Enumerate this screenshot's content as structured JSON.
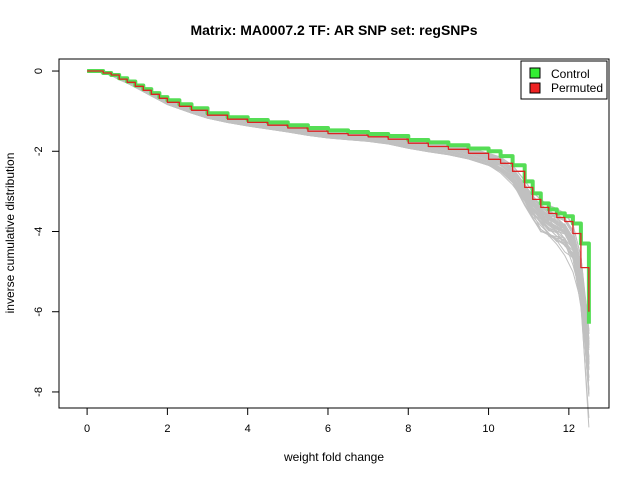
{
  "chart_data": {
    "type": "line",
    "title": "Matrix: MA0007.2 TF: AR SNP set: regSNPs",
    "xlabel": "weight fold change",
    "ylabel": "inverse cumulative distribution",
    "xlim": [
      -0.7,
      13.0
    ],
    "ylim": [
      -8.4,
      0.3
    ],
    "xticks": [
      0,
      2,
      4,
      6,
      8,
      10,
      12
    ],
    "yticks": [
      0,
      -2,
      -4,
      -6,
      -8
    ],
    "grid": false,
    "legend": {
      "position": "top-right",
      "entries": [
        {
          "label": "Control",
          "color": "#33ee33"
        },
        {
          "label": "Permuted",
          "color": "#ee2222"
        }
      ]
    },
    "colors": {
      "background_lines": "#c0c0c0",
      "control": "#55dd55",
      "permuted": "#dd2222",
      "axis": "#000000"
    },
    "background_line_count": 50,
    "series": [
      {
        "name": "Control",
        "x": [
          0,
          0.2,
          0.4,
          0.6,
          0.8,
          1.0,
          1.2,
          1.4,
          1.6,
          1.8,
          2.0,
          2.3,
          2.6,
          3.0,
          3.5,
          4.0,
          4.5,
          5.0,
          5.5,
          6.0,
          6.5,
          7.0,
          7.5,
          8.0,
          8.5,
          9.0,
          9.5,
          10.0,
          10.3,
          10.6,
          10.9,
          11.1,
          11.3,
          11.5,
          11.7,
          11.9,
          12.1,
          12.3,
          12.5
        ],
        "values": [
          0,
          0,
          -0.05,
          -0.1,
          -0.18,
          -0.26,
          -0.36,
          -0.45,
          -0.55,
          -0.65,
          -0.73,
          -0.83,
          -0.93,
          -1.05,
          -1.15,
          -1.22,
          -1.28,
          -1.35,
          -1.42,
          -1.48,
          -1.52,
          -1.57,
          -1.62,
          -1.72,
          -1.78,
          -1.85,
          -1.93,
          -2.0,
          -2.12,
          -2.35,
          -2.75,
          -3.05,
          -3.3,
          -3.45,
          -3.55,
          -3.62,
          -3.8,
          -4.3,
          -6.3
        ]
      },
      {
        "name": "Permuted",
        "x": [
          0,
          0.2,
          0.4,
          0.6,
          0.8,
          1.0,
          1.2,
          1.4,
          1.6,
          1.8,
          2.0,
          2.3,
          2.6,
          3.0,
          3.5,
          4.0,
          4.5,
          5.0,
          5.5,
          6.0,
          6.5,
          7.0,
          7.5,
          8.0,
          8.5,
          9.0,
          9.5,
          10.0,
          10.3,
          10.6,
          10.9,
          11.1,
          11.3,
          11.5,
          11.7,
          11.9,
          12.1,
          12.3,
          12.5
        ],
        "values": [
          0,
          0,
          -0.05,
          -0.1,
          -0.2,
          -0.28,
          -0.38,
          -0.48,
          -0.58,
          -0.68,
          -0.78,
          -0.88,
          -0.98,
          -1.1,
          -1.2,
          -1.28,
          -1.35,
          -1.42,
          -1.5,
          -1.56,
          -1.6,
          -1.64,
          -1.7,
          -1.8,
          -1.88,
          -1.95,
          -2.05,
          -2.2,
          -2.3,
          -2.5,
          -2.9,
          -3.2,
          -3.4,
          -3.55,
          -3.65,
          -3.75,
          -4.05,
          -4.9,
          -6.0
        ]
      }
    ]
  }
}
